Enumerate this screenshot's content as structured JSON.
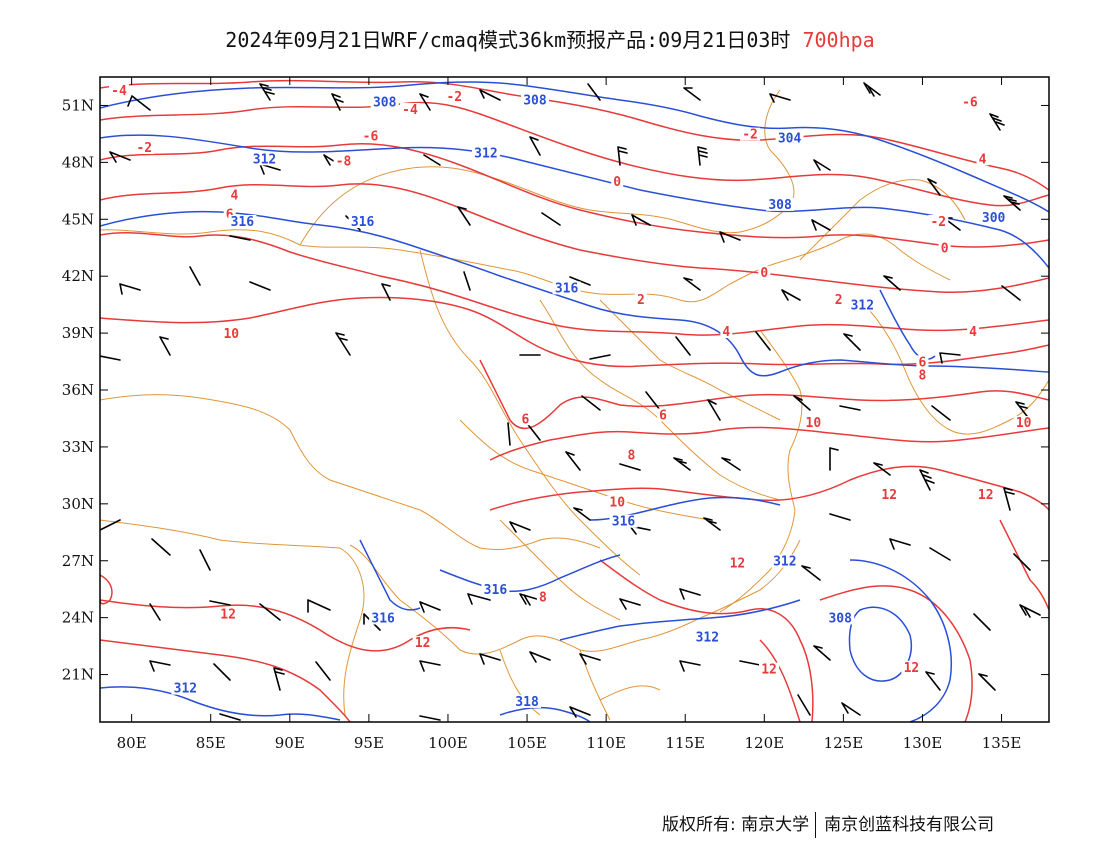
{
  "title": {
    "main": "2024年09月21日WRF/cmaq模式36km预报产品:09月21日03时",
    "level": "700hpa"
  },
  "axes": {
    "lat_labels": [
      "51N",
      "48N",
      "45N",
      "42N",
      "39N",
      "36N",
      "33N",
      "30N",
      "27N",
      "24N",
      "21N"
    ],
    "lon_labels": [
      "80E",
      "85E",
      "90E",
      "95E",
      "100E",
      "105E",
      "110E",
      "115E",
      "120E",
      "125E",
      "130E",
      "135E"
    ],
    "lat_values": [
      51,
      48,
      45,
      42,
      39,
      36,
      33,
      30,
      27,
      24,
      21
    ],
    "lon_values": [
      80,
      85,
      90,
      95,
      100,
      105,
      110,
      115,
      120,
      125,
      130,
      135
    ],
    "lon_range": [
      78,
      138
    ],
    "lat_range": [
      18.5,
      52.5
    ]
  },
  "colors": {
    "temperature": "#e83a3a",
    "geopotential": "#2a4fd6",
    "border": "#e0963a",
    "wind": "#000000"
  },
  "contour_labels": {
    "temperature": [
      {
        "text": "-4",
        "lon": 79.2,
        "lat": 51.6
      },
      {
        "text": "-2",
        "lon": 100.4,
        "lat": 51.3
      },
      {
        "text": "-4",
        "lon": 97.6,
        "lon2": 0,
        "lat": 50.6
      },
      {
        "text": "-2",
        "lon": 80.8,
        "lat": 48.6
      },
      {
        "text": "-6",
        "lon": 95.1,
        "lat": 49.2
      },
      {
        "text": "-8",
        "lon": 93.4,
        "lat": 47.9
      },
      {
        "text": "4",
        "lon": 86.5,
        "lat": 46.1
      },
      {
        "text": "6",
        "lon": 86.2,
        "lat": 45.1
      },
      {
        "text": "0",
        "lon": 110.7,
        "lat": 46.8
      },
      {
        "text": "-2",
        "lon": 119.1,
        "lat": 49.3
      },
      {
        "text": "-6",
        "lon": 133.0,
        "lat": 51.0
      },
      {
        "text": "4",
        "lon": 133.8,
        "lat": 48.0
      },
      {
        "text": "-2",
        "lon": 131.0,
        "lat": 44.7
      },
      {
        "text": "0",
        "lon": 131.4,
        "lat": 43.3
      },
      {
        "text": "0",
        "lon": 120.0,
        "lat": 42.0
      },
      {
        "text": "2",
        "lon": 112.2,
        "lat": 40.6
      },
      {
        "text": "2",
        "lon": 124.7,
        "lat": 40.6
      },
      {
        "text": "4",
        "lon": 117.6,
        "lat": 38.9
      },
      {
        "text": "4",
        "lon": 133.2,
        "lat": 38.9
      },
      {
        "text": "6",
        "lon": 130.0,
        "lat": 37.3
      },
      {
        "text": "8",
        "lon": 130.0,
        "lat": 36.6
      },
      {
        "text": "10",
        "lon": 86.3,
        "lat": 38.8
      },
      {
        "text": "6",
        "lon": 104.9,
        "lat": 34.3
      },
      {
        "text": "6",
        "lon": 113.6,
        "lat": 34.5
      },
      {
        "text": "10",
        "lon": 123.1,
        "lat": 34.1
      },
      {
        "text": "10",
        "lon": 136.4,
        "lat": 34.1
      },
      {
        "text": "8",
        "lon": 111.6,
        "lat": 32.4
      },
      {
        "text": "10",
        "lon": 110.7,
        "lat": 29.9
      },
      {
        "text": "12",
        "lon": 127.9,
        "lat": 30.3
      },
      {
        "text": "12",
        "lon": 134.0,
        "lat": 30.3
      },
      {
        "text": "12",
        "lon": 86.1,
        "lat": 24.0
      },
      {
        "text": "8",
        "lon": 106.0,
        "lat": 24.9
      },
      {
        "text": "12",
        "lon": 98.4,
        "lat": 22.5
      },
      {
        "text": "12",
        "lon": 118.3,
        "lat": 26.7
      },
      {
        "text": "12",
        "lon": 120.3,
        "lat": 21.1
      },
      {
        "text": "12",
        "lon": 129.3,
        "lat": 21.2
      }
    ],
    "geopotential": [
      {
        "text": "308",
        "lon": 96.0,
        "lat": 51.0
      },
      {
        "text": "308",
        "lon": 105.5,
        "lat": 51.1
      },
      {
        "text": "304",
        "lon": 121.6,
        "lat": 49.1
      },
      {
        "text": "312",
        "lon": 88.4,
        "lat": 48.0
      },
      {
        "text": "312",
        "lon": 102.4,
        "lat": 48.3
      },
      {
        "text": "316",
        "lon": 87.0,
        "lat": 44.7
      },
      {
        "text": "316",
        "lon": 94.6,
        "lat": 44.7
      },
      {
        "text": "308",
        "lon": 121.0,
        "lat": 45.6
      },
      {
        "text": "300",
        "lon": 134.5,
        "lat": 44.9
      },
      {
        "text": "316",
        "lon": 107.5,
        "lat": 41.2
      },
      {
        "text": "312",
        "lon": 126.2,
        "lat": 40.3
      },
      {
        "text": "316",
        "lon": 111.1,
        "lat": 28.9
      },
      {
        "text": "316",
        "lon": 95.9,
        "lat": 23.8
      },
      {
        "text": "316",
        "lon": 103.0,
        "lat": 25.3
      },
      {
        "text": "312",
        "lon": 121.3,
        "lat": 26.8
      },
      {
        "text": "312",
        "lon": 116.4,
        "lat": 22.8
      },
      {
        "text": "308",
        "lon": 124.8,
        "lat": 23.8
      },
      {
        "text": "312",
        "lon": 83.4,
        "lat": 20.1
      },
      {
        "text": "318",
        "lon": 105.0,
        "lat": 19.4
      }
    ]
  },
  "footer": {
    "left": "版权所有: 南京大学",
    "right": "南京创蓝科技有限公司"
  }
}
